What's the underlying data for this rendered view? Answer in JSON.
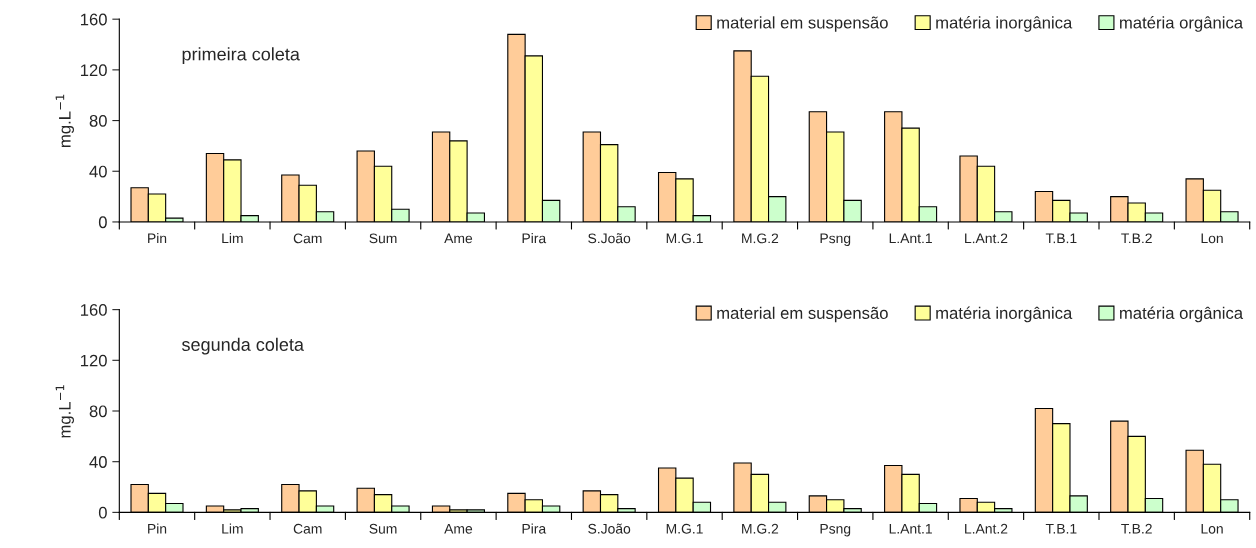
{
  "chart_data": [
    {
      "type": "bar",
      "title": "primeira coleta",
      "ylabel": "mg.L$^{−1}$",
      "categories": [
        "Pin",
        "Lim",
        "Cam",
        "Sum",
        "Ame",
        "Pira",
        "S.João",
        "M.G.1",
        "M.G.2",
        "Psng",
        "L.Ant.1",
        "L.Ant.2",
        "T.B.1",
        "T.B.2",
        "Lon"
      ],
      "series": [
        {
          "name": "material em suspensão",
          "color": "#ffcc99",
          "values": [
            27,
            54,
            37,
            56,
            71,
            148,
            71,
            39,
            135,
            87,
            87,
            52,
            24,
            20,
            34
          ]
        },
        {
          "name": "matéria inorgânica",
          "color": "#ffff99",
          "values": [
            22,
            49,
            29,
            44,
            64,
            131,
            61,
            34,
            115,
            71,
            74,
            44,
            17,
            15,
            25
          ]
        },
        {
          "name": "matéria orgânica",
          "color": "#ccffcc",
          "values": [
            3,
            5,
            8,
            10,
            7,
            17,
            12,
            5,
            20,
            17,
            12,
            8,
            7,
            7,
            8
          ]
        }
      ],
      "ylim": [
        0,
        160
      ],
      "yticks": [
        0,
        40,
        80,
        120,
        160
      ],
      "grid": false,
      "legend": "top right"
    },
    {
      "type": "bar",
      "title": "segunda coleta",
      "ylabel": "mg.L$^{−1}$",
      "categories": [
        "Pin",
        "Lim",
        "Cam",
        "Sum",
        "Ame",
        "Pira",
        "S.João",
        "M.G.1",
        "M.G.2",
        "Psng",
        "L.Ant.1",
        "L.Ant.2",
        "T.B.1",
        "T.B.2",
        "Lon"
      ],
      "series": [
        {
          "name": "material em suspensão",
          "color": "#ffcc99",
          "values": [
            22,
            5,
            22,
            19,
            5,
            15,
            17,
            35,
            39,
            13,
            37,
            11,
            82,
            72,
            49
          ]
        },
        {
          "name": "matéria inorgânica",
          "color": "#ffff99",
          "values": [
            15,
            2,
            17,
            14,
            2,
            10,
            14,
            27,
            30,
            10,
            30,
            8,
            70,
            60,
            38
          ]
        },
        {
          "name": "matéria orgânica",
          "color": "#ccffcc",
          "values": [
            7,
            3,
            5,
            5,
            2,
            5,
            3,
            8,
            8,
            3,
            7,
            3,
            13,
            11,
            10
          ]
        }
      ],
      "ylim": [
        0,
        160
      ],
      "yticks": [
        0,
        40,
        80,
        120,
        160
      ],
      "grid": false,
      "legend": "top right"
    }
  ]
}
